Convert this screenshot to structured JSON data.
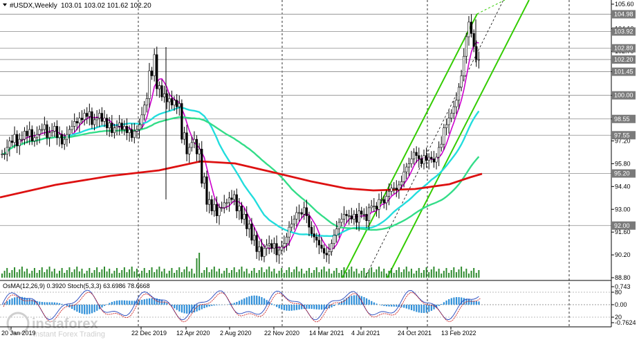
{
  "header": {
    "symbol": "#USDX,Weekly",
    "ohlc": "103.01 103.02 101.62 102.20"
  },
  "indicator": {
    "label": "OsMA(12,26,9) 0.3920  Stoch(5,3,3) 63.6986 78.6668"
  },
  "watermark": {
    "brand": "instaforex",
    "tagline": "Instant Forex Trading"
  },
  "colors": {
    "candles": "#000000",
    "ma_fast": "#cc00cc",
    "ma_cyan": "#22dddd",
    "ma_green": "#33dd88",
    "ma_red": "#dd1111",
    "channel": "#33cc00",
    "osma": "#2f8fd8",
    "stoch_main": "#2244bb",
    "stoch_signal": "#cc2222"
  },
  "chart_data": {
    "type": "candlestick",
    "y_ticks": [
      "105.60",
      "104.10",
      "102.70",
      "101.45",
      "100.00",
      "98.55",
      "97.20",
      "95.80",
      "94.40",
      "93.00",
      "91.60",
      "90.20",
      "88.80"
    ],
    "price_levels": [
      {
        "value": 104.98,
        "label": "104.98",
        "boxed": true
      },
      {
        "value": 103.92,
        "label": "103.92",
        "boxed": true
      },
      {
        "value": 102.89,
        "label": "102.89",
        "boxed": true
      },
      {
        "value": 102.2,
        "label": "102.20",
        "boxed": true
      },
      {
        "value": 101.45,
        "label": "101.45",
        "boxed": true
      },
      {
        "value": 100.0,
        "label": "100.00",
        "boxed": true
      },
      {
        "value": 98.55,
        "label": "98.55",
        "boxed": true
      },
      {
        "value": 97.55,
        "label": "97.55",
        "boxed": true
      },
      {
        "value": 95.2,
        "label": "95.20",
        "boxed": true
      },
      {
        "value": 92.0,
        "label": "92.00",
        "boxed": true
      }
    ],
    "x_labels": [
      "20 Jan 2019",
      "22 Dec 2019",
      "12 Apr 2020",
      "2 Aug 2020",
      "22 Nov 2020",
      "14 Mar 2021",
      "4 Jul 2021",
      "24 Oct 2021",
      "13 Feb 2022"
    ],
    "sub_axis": [
      "0.743",
      "80",
      "0.00",
      "20",
      "-0.7624"
    ],
    "close_path": [
      [
        96.4,
        96.4
      ],
      [
        96.8,
        97.2
      ],
      [
        97.1,
        97.6
      ],
      [
        96.9,
        97.3
      ],
      [
        97.3,
        97.8
      ],
      [
        97.5,
        97.9
      ],
      [
        97.2,
        97.4
      ],
      [
        97.6,
        97.9
      ],
      [
        97.9,
        98.2
      ],
      [
        97.4,
        97.7
      ],
      [
        97.8,
        98.1
      ],
      [
        97.4,
        97.6
      ],
      [
        97.0,
        97.3
      ],
      [
        97.6,
        97.9
      ],
      [
        98.1,
        98.4
      ],
      [
        98.3,
        98.6
      ],
      [
        98.5,
        98.9
      ],
      [
        98.7,
        99.0
      ],
      [
        98.2,
        98.5
      ],
      [
        98.6,
        98.9
      ],
      [
        98.4,
        98.6
      ],
      [
        98.0,
        98.3
      ],
      [
        97.7,
        98.0
      ],
      [
        98.1,
        98.3
      ],
      [
        97.9,
        98.1
      ],
      [
        97.7,
        97.9
      ],
      [
        97.4,
        97.8
      ],
      [
        97.9,
        98.2
      ],
      [
        98.8,
        99.4
      ],
      [
        99.8,
        101.5
      ],
      [
        101.2,
        102.5
      ],
      [
        100.4,
        100.6
      ],
      [
        99.9,
        100.1
      ],
      [
        99.6,
        99.8
      ],
      [
        99.4,
        99.7
      ],
      [
        99.3,
        99.5
      ],
      [
        97.3,
        97.7
      ],
      [
        96.4,
        96.8
      ],
      [
        97.1,
        97.3
      ],
      [
        96.4,
        96.7
      ],
      [
        94.6,
        95.0
      ],
      [
        93.3,
        93.6
      ],
      [
        92.9,
        93.3
      ],
      [
        92.6,
        93.1
      ],
      [
        93.1,
        93.4
      ],
      [
        93.4,
        93.7
      ],
      [
        93.6,
        93.9
      ],
      [
        92.9,
        93.2
      ],
      [
        92.4,
        92.7
      ],
      [
        91.8,
        92.1
      ],
      [
        91.1,
        91.4
      ],
      [
        90.4,
        90.7
      ],
      [
        90.1,
        90.6
      ],
      [
        90.8,
        90.9
      ],
      [
        90.6,
        90.9
      ],
      [
        90.2,
        90.5
      ],
      [
        90.7,
        90.9
      ],
      [
        91.3,
        91.9
      ],
      [
        92.1,
        92.4
      ],
      [
        92.8,
        92.8
      ],
      [
        92.7,
        93.1
      ],
      [
        92.6,
        91.9
      ],
      [
        91.5,
        91.3
      ],
      [
        91.1,
        90.8
      ],
      [
        90.6,
        90.3
      ],
      [
        90.2,
        90.4
      ],
      [
        90.9,
        91.4
      ],
      [
        91.8,
        92.2
      ],
      [
        92.4,
        92.7
      ],
      [
        92.6,
        92.6
      ],
      [
        92.4,
        92.7
      ],
      [
        92.2,
        92.9
      ],
      [
        92.7,
        92.7
      ],
      [
        92.3,
        93.1
      ],
      [
        93.2,
        93.2
      ],
      [
        93.0,
        93.6
      ],
      [
        93.6,
        93.4
      ],
      [
        93.8,
        94.1
      ],
      [
        94.3,
        94.3
      ],
      [
        94.2,
        94.5
      ],
      [
        94.7,
        95.3
      ],
      [
        95.6,
        95.8
      ],
      [
        96.1,
        96.5
      ],
      [
        96.3,
        96.1
      ],
      [
        95.8,
        96.3
      ],
      [
        96.0,
        96.2
      ],
      [
        96.1,
        95.9
      ],
      [
        96.2,
        96.8
      ],
      [
        97.0,
        98.0
      ],
      [
        98.2,
        98.6
      ],
      [
        98.9,
        99.3
      ],
      [
        99.7,
        100.5
      ],
      [
        101.2,
        102.4
      ],
      [
        103.6,
        104.5
      ],
      [
        103.8,
        103.0
      ],
      [
        102.2,
        102.2
      ]
    ]
  }
}
